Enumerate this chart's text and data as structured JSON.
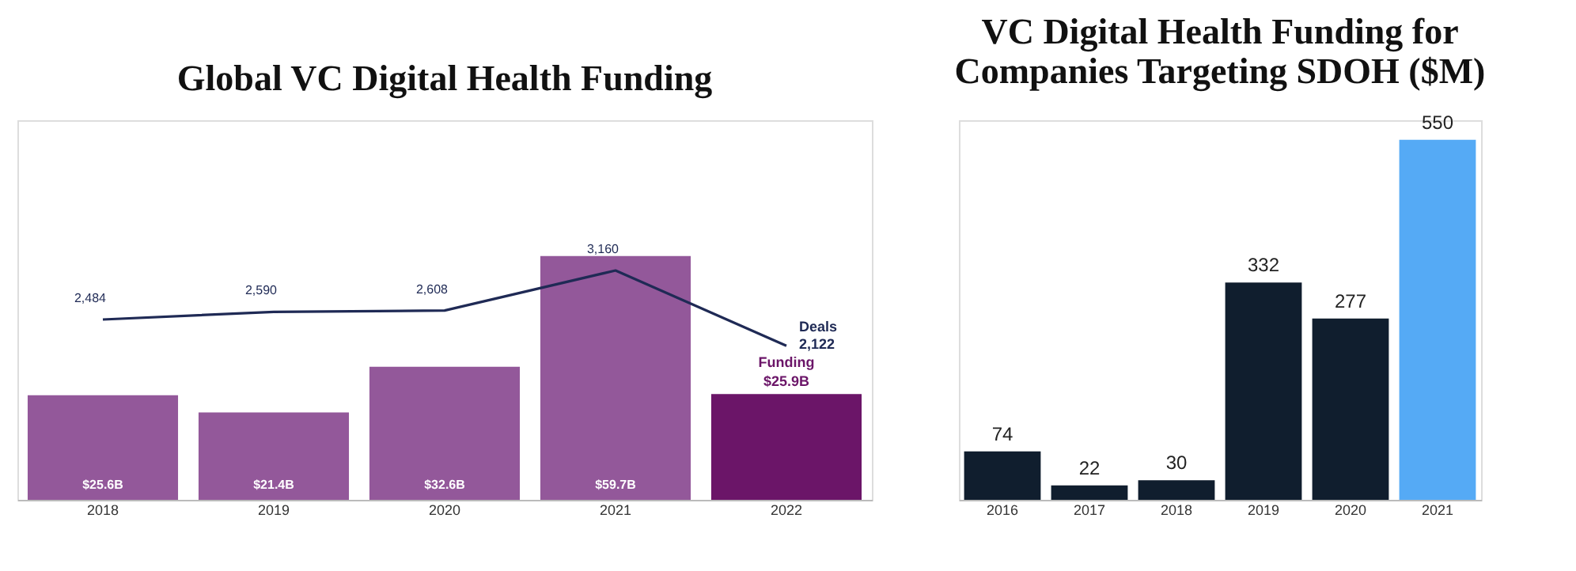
{
  "chart_data": [
    {
      "type": "bar",
      "title": "Global VC Digital Health Funding",
      "categories": [
        "2018",
        "2019",
        "2020",
        "2021",
        "2022"
      ],
      "series": [
        {
          "name": "Funding",
          "type": "bar",
          "colors": [
            "#93589a",
            "#93589a",
            "#93589a",
            "#93589a",
            "#6b1568"
          ],
          "values": [
            25.6,
            21.4,
            32.6,
            59.7,
            25.9
          ],
          "value_labels": [
            "$25.6B",
            "$21.4B",
            "$32.6B",
            "$59.7B",
            "$25.9B"
          ]
        },
        {
          "name": "Deals",
          "type": "line",
          "axis": "y2",
          "color": "#1f2a55",
          "values": [
            2484,
            2590,
            2608,
            3160,
            2122
          ],
          "value_labels": [
            "2,484",
            "2,590",
            "2,608",
            "3,160",
            "2,122"
          ]
        }
      ],
      "ylim": [
        0,
        93
      ],
      "y2lim": [
        0,
        5230
      ],
      "tick_labels": "x",
      "legend": false,
      "grid": false
    },
    {
      "type": "bar",
      "title": "VC Digital Health Funding for\nCompanies Targeting SDOH ($M)",
      "categories": [
        "2016",
        "2017",
        "2018",
        "2019",
        "2020",
        "2021"
      ],
      "values": [
        74,
        22,
        30,
        332,
        277,
        550
      ],
      "colors": [
        "#101e2e",
        "#101e2e",
        "#101e2e",
        "#101e2e",
        "#101e2e",
        "#55aaf5"
      ],
      "ylim": [
        0,
        580
      ],
      "tick_labels": "x",
      "data_labels": true,
      "grid": false
    }
  ]
}
